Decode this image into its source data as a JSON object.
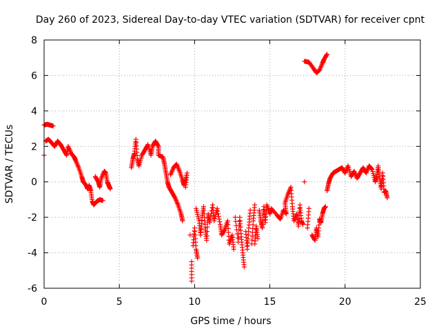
{
  "chart_data": {
    "type": "scatter",
    "title": "Day 260 of 2023, Sidereal Day-to-day VTEC variation (SDTVAR) for receiver cpnt",
    "xlabel": "GPS time / hours",
    "ylabel": "SDTVAR / TECUs",
    "xlim": [
      0,
      25
    ],
    "ylim": [
      -6,
      8
    ],
    "xticks": [
      "0",
      "5",
      "10",
      "15",
      "20",
      "25"
    ],
    "yticks": [
      "-6",
      "-4",
      "-2",
      "0",
      "2",
      "4",
      "6",
      "8"
    ],
    "grid": true,
    "marker": "+",
    "color": "#ff0000",
    "series": [
      {
        "name": "SDTVAR",
        "points": [
          [
            0.0,
            1.5
          ],
          [
            0.0,
            3.2
          ],
          [
            0.2,
            3.25
          ],
          [
            0.4,
            3.2
          ],
          [
            0.6,
            3.15
          ],
          [
            0.1,
            2.3
          ],
          [
            0.3,
            2.4
          ],
          [
            0.5,
            2.2
          ],
          [
            0.7,
            2.0
          ],
          [
            0.9,
            2.3
          ],
          [
            1.1,
            2.1
          ],
          [
            1.3,
            1.8
          ],
          [
            1.5,
            1.5
          ],
          [
            1.6,
            2.0
          ],
          [
            1.8,
            1.6
          ],
          [
            2.0,
            1.4
          ],
          [
            2.1,
            1.2
          ],
          [
            2.3,
            0.8
          ],
          [
            2.5,
            0.3
          ],
          [
            2.6,
            0.0
          ],
          [
            2.8,
            -0.2
          ],
          [
            2.9,
            -0.4
          ],
          [
            3.0,
            -0.2
          ],
          [
            3.1,
            -0.5
          ],
          [
            3.2,
            -1.1
          ],
          [
            3.3,
            -1.3
          ],
          [
            3.5,
            -1.1
          ],
          [
            3.7,
            -1.0
          ],
          [
            3.9,
            -1.05
          ],
          [
            3.4,
            0.3
          ],
          [
            3.6,
            0.0
          ],
          [
            3.7,
            -0.3
          ],
          [
            3.8,
            0.2
          ],
          [
            4.0,
            0.6
          ],
          [
            4.1,
            0.5
          ],
          [
            4.2,
            0.0
          ],
          [
            4.3,
            -0.2
          ],
          [
            4.4,
            -0.4
          ],
          [
            5.8,
            0.8
          ],
          [
            5.9,
            1.3
          ],
          [
            6.0,
            1.6
          ],
          [
            6.1,
            2.4
          ],
          [
            6.2,
            1.3
          ],
          [
            6.3,
            0.9
          ],
          [
            6.5,
            1.5
          ],
          [
            6.7,
            1.8
          ],
          [
            6.9,
            2.1
          ],
          [
            7.1,
            1.5
          ],
          [
            7.2,
            2.0
          ],
          [
            7.4,
            2.3
          ],
          [
            7.6,
            2.0
          ],
          [
            7.6,
            1.5
          ],
          [
            7.9,
            1.4
          ],
          [
            8.0,
            1.0
          ],
          [
            8.1,
            0.5
          ],
          [
            8.2,
            0.0
          ],
          [
            8.3,
            -0.3
          ],
          [
            8.5,
            -0.6
          ],
          [
            8.7,
            -0.9
          ],
          [
            8.9,
            -1.3
          ],
          [
            9.1,
            -1.8
          ],
          [
            9.2,
            -2.2
          ],
          [
            8.4,
            0.4
          ],
          [
            8.6,
            0.8
          ],
          [
            8.8,
            1.0
          ],
          [
            9.0,
            0.6
          ],
          [
            9.2,
            0.1
          ],
          [
            9.3,
            -0.2
          ],
          [
            9.5,
            0.5
          ],
          [
            9.4,
            -0.3
          ],
          [
            9.7,
            -3.0
          ],
          [
            9.8,
            -4.5
          ],
          [
            9.8,
            -5.6
          ],
          [
            9.9,
            -3.6
          ],
          [
            10.0,
            -2.6
          ],
          [
            10.1,
            -3.8
          ],
          [
            10.2,
            -4.3
          ],
          [
            10.1,
            -1.5
          ],
          [
            10.3,
            -2.2
          ],
          [
            10.4,
            -3.0
          ],
          [
            10.5,
            -2.0
          ],
          [
            10.6,
            -1.4
          ],
          [
            10.7,
            -2.6
          ],
          [
            10.8,
            -3.3
          ],
          [
            10.9,
            -1.8
          ],
          [
            11.0,
            -2.3
          ],
          [
            11.2,
            -1.3
          ],
          [
            11.3,
            -2.2
          ],
          [
            11.5,
            -1.5
          ],
          [
            11.7,
            -2.4
          ],
          [
            11.8,
            -3.0
          ],
          [
            12.0,
            -2.7
          ],
          [
            12.2,
            -2.2
          ],
          [
            12.3,
            -3.5
          ],
          [
            12.5,
            -3.0
          ],
          [
            12.6,
            -3.8
          ],
          [
            12.7,
            -2.0
          ],
          [
            12.9,
            -3.4
          ],
          [
            13.0,
            -2.0
          ],
          [
            13.1,
            -3.1
          ],
          [
            13.2,
            -4.0
          ],
          [
            13.3,
            -4.8
          ],
          [
            13.4,
            -2.8
          ],
          [
            13.5,
            -3.8
          ],
          [
            13.6,
            -2.6
          ],
          [
            13.7,
            -1.6
          ],
          [
            13.8,
            -3.5
          ],
          [
            13.9,
            -2.2
          ],
          [
            14.0,
            -1.3
          ],
          [
            14.0,
            -3.5
          ],
          [
            14.1,
            -2.5
          ],
          [
            14.2,
            -3.2
          ],
          [
            14.3,
            -1.6
          ],
          [
            14.4,
            -2.2
          ],
          [
            14.5,
            -2.6
          ],
          [
            14.6,
            -1.4
          ],
          [
            14.7,
            -2.3
          ],
          [
            14.8,
            -1.3
          ],
          [
            15.0,
            -1.8
          ],
          [
            15.1,
            -1.5
          ],
          [
            15.5,
            -1.9
          ],
          [
            15.7,
            -2.1
          ],
          [
            15.9,
            -1.6
          ],
          [
            16.1,
            -1.8
          ],
          [
            16.0,
            -1.2
          ],
          [
            16.2,
            -0.7
          ],
          [
            16.4,
            -0.3
          ],
          [
            16.5,
            -1.4
          ],
          [
            16.6,
            -2.2
          ],
          [
            16.8,
            -1.8
          ],
          [
            16.9,
            -2.5
          ],
          [
            17.0,
            -1.3
          ],
          [
            17.1,
            -2.2
          ],
          [
            17.2,
            -2.4
          ],
          [
            17.3,
            0.0
          ],
          [
            17.5,
            -2.6
          ],
          [
            17.6,
            -1.5
          ],
          [
            17.8,
            -3.0
          ],
          [
            18.0,
            -3.3
          ],
          [
            18.1,
            -2.6
          ],
          [
            18.2,
            -3.1
          ],
          [
            18.3,
            -2.1
          ],
          [
            18.4,
            -2.3
          ],
          [
            18.5,
            -1.8
          ],
          [
            18.6,
            -1.5
          ],
          [
            18.7,
            -1.4
          ],
          [
            17.3,
            6.8
          ],
          [
            17.6,
            6.75
          ],
          [
            17.9,
            6.4
          ],
          [
            18.1,
            6.15
          ],
          [
            18.3,
            6.3
          ],
          [
            18.5,
            6.7
          ],
          [
            18.6,
            6.9
          ],
          [
            18.8,
            7.2
          ],
          [
            18.8,
            -0.5
          ],
          [
            18.9,
            -0.1
          ],
          [
            19.0,
            0.2
          ],
          [
            19.2,
            0.5
          ],
          [
            19.4,
            0.6
          ],
          [
            19.6,
            0.7
          ],
          [
            19.8,
            0.8
          ],
          [
            20.0,
            0.5
          ],
          [
            20.2,
            0.9
          ],
          [
            20.4,
            0.3
          ],
          [
            20.6,
            0.6
          ],
          [
            20.8,
            0.2
          ],
          [
            21.0,
            0.5
          ],
          [
            21.2,
            0.8
          ],
          [
            21.4,
            0.5
          ],
          [
            21.6,
            0.9
          ],
          [
            21.8,
            0.7
          ],
          [
            22.0,
            0.0
          ],
          [
            22.1,
            0.3
          ],
          [
            22.2,
            0.9
          ],
          [
            22.3,
            0.2
          ],
          [
            22.4,
            -0.4
          ],
          [
            22.5,
            0.5
          ],
          [
            22.6,
            -0.6
          ],
          [
            22.7,
            -0.5
          ],
          [
            22.8,
            -0.9
          ]
        ]
      }
    ]
  }
}
